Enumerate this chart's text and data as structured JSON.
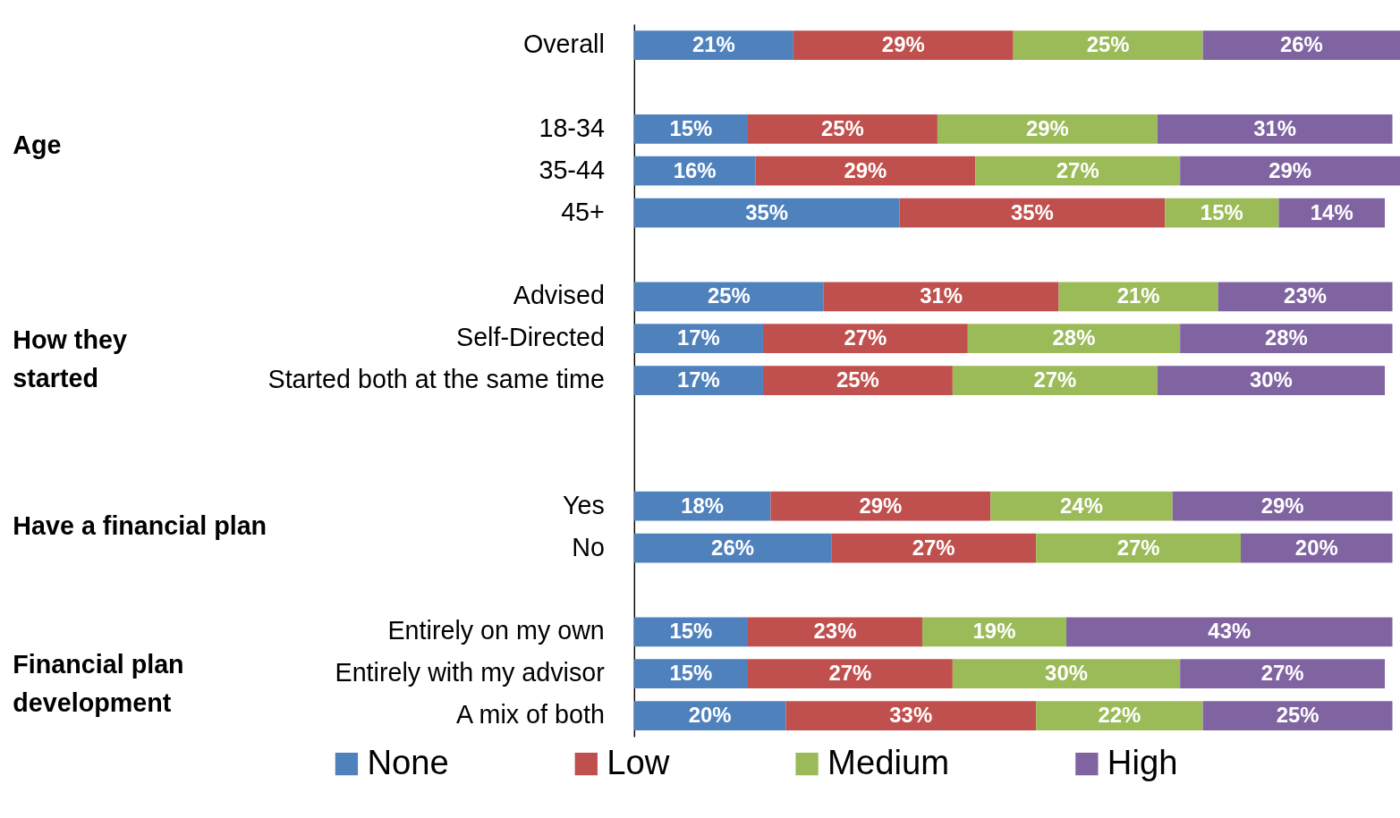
{
  "chart_data": {
    "type": "bar",
    "orientation": "horizontal",
    "stacked": true,
    "tick_labels": false,
    "xlim": [
      0,
      101
    ],
    "legend": "bottom",
    "categories": [
      "Overall",
      null,
      "18-34",
      "35-44",
      "45+",
      null,
      "Advised",
      "Self-Directed",
      "Started both at the same time",
      null,
      null,
      "Yes",
      "No",
      null,
      "Entirely on my own",
      "Entirely with my advisor",
      "A mix of both"
    ],
    "annotations": [
      "Age",
      "How they started",
      "Have a financial plan",
      "Financial plan development"
    ],
    "series": [
      {
        "name": "None",
        "color": "#4f81bd",
        "values": [
          21,
          null,
          15,
          16,
          35,
          null,
          25,
          17,
          17,
          null,
          null,
          18,
          26,
          null,
          15,
          15,
          20
        ],
        "value_labels": [
          "21%",
          null,
          "15%",
          "16%",
          "35%",
          null,
          "25%",
          "17%",
          "17%",
          null,
          null,
          "18%",
          "26%",
          null,
          "15%",
          "15%",
          "20%"
        ]
      },
      {
        "name": "Low",
        "color": "#c0504d",
        "values": [
          29,
          null,
          25,
          29,
          35,
          null,
          31,
          27,
          25,
          null,
          null,
          29,
          27,
          null,
          23,
          27,
          33
        ],
        "value_labels": [
          "29%",
          null,
          "25%",
          "29%",
          "35%",
          null,
          "31%",
          "27%",
          "25%",
          null,
          null,
          "29%",
          "27%",
          null,
          "23%",
          "27%",
          "33%"
        ]
      },
      {
        "name": "Medium",
        "color": "#9bbb59",
        "values": [
          25,
          null,
          29,
          27,
          15,
          null,
          21,
          28,
          27,
          null,
          null,
          24,
          27,
          null,
          19,
          30,
          22
        ],
        "value_labels": [
          "25%",
          null,
          "29%",
          "27%",
          "15%",
          null,
          "21%",
          "28%",
          "27%",
          null,
          null,
          "24%",
          "27%",
          null,
          "19%",
          "30%",
          "22%"
        ]
      },
      {
        "name": "High",
        "color": "#8064a2",
        "values": [
          26,
          null,
          31,
          29,
          14,
          null,
          23,
          28,
          30,
          null,
          null,
          29,
          20,
          null,
          43,
          27,
          25
        ],
        "value_labels": [
          "26%",
          null,
          "31%",
          "29%",
          "14%",
          null,
          "23%",
          "28%",
          "30%",
          null,
          null,
          "29%",
          "20%",
          null,
          "43%",
          "27%",
          "25%"
        ]
      }
    ]
  }
}
